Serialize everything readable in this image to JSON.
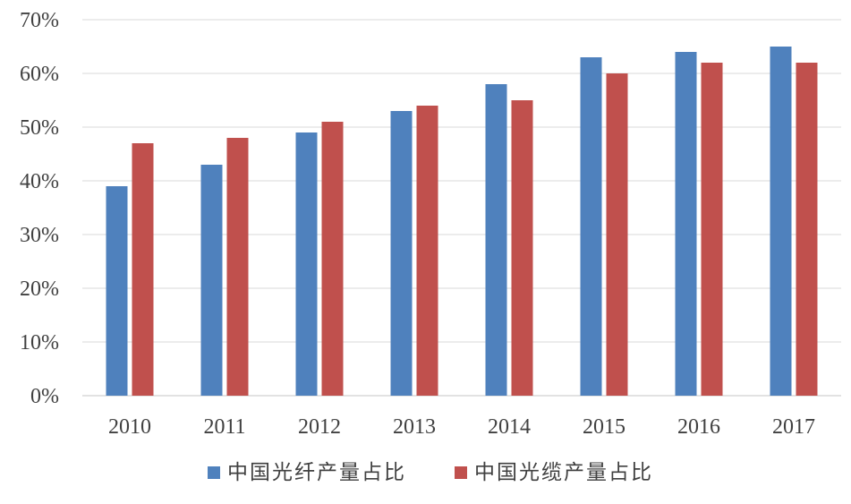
{
  "chart_data": {
    "type": "bar",
    "categories": [
      "2010",
      "2011",
      "2012",
      "2013",
      "2014",
      "2015",
      "2016",
      "2017"
    ],
    "series": [
      {
        "name": "中国光纤产量占比",
        "color": "#4f81bd",
        "values": [
          39,
          43,
          49,
          53,
          58,
          63,
          64,
          65
        ]
      },
      {
        "name": "中国光缆产量占比",
        "color": "#c0504d",
        "values": [
          47,
          48,
          51,
          54,
          55,
          60,
          62,
          62
        ]
      }
    ],
    "yticks": [
      "0%",
      "10%",
      "20%",
      "30%",
      "40%",
      "50%",
      "60%",
      "70%"
    ],
    "ylim": [
      0,
      70
    ],
    "y_unit": "%",
    "grid": true,
    "legend_position": "bottom"
  }
}
